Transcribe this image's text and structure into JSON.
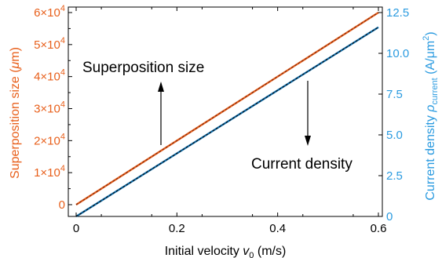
{
  "chart_data": {
    "type": "line",
    "xlabel_parts": [
      "Initial velocity ",
      "v",
      "0",
      " (m/s)"
    ],
    "ylabel_left_parts": [
      "Superposition size (",
      "μ",
      "m)"
    ],
    "ylabel_right_parts": [
      "Current density ",
      "ρ",
      "current",
      " (A/μm",
      "2",
      ")"
    ],
    "xlim": [
      0,
      0.6
    ],
    "ylim_left": [
      0,
      60000
    ],
    "ylim_right": [
      0,
      12.5
    ],
    "x_ticks": [
      {
        "value": 0,
        "label": "0"
      },
      {
        "value": 0.2,
        "label": "0.2"
      },
      {
        "value": 0.4,
        "label": "0.4"
      },
      {
        "value": 0.6,
        "label": "0.6"
      }
    ],
    "y_left_ticks": [
      {
        "value": 0,
        "mant": "0",
        "exp": ""
      },
      {
        "value": 10000,
        "mant": "1×10",
        "exp": "4"
      },
      {
        "value": 20000,
        "mant": "2×10",
        "exp": "4"
      },
      {
        "value": 30000,
        "mant": "3×10",
        "exp": "4"
      },
      {
        "value": 40000,
        "mant": "4×10",
        "exp": "4"
      },
      {
        "value": 50000,
        "mant": "5×10",
        "exp": "4"
      },
      {
        "value": 60000,
        "mant": "6×10",
        "exp": "4"
      }
    ],
    "y_right_ticks": [
      {
        "value": 0,
        "label": "0"
      },
      {
        "value": 2.5,
        "label": "2.5"
      },
      {
        "value": 5.0,
        "label": "5.0"
      },
      {
        "value": 7.5,
        "label": "7.5"
      },
      {
        "value": 10.0,
        "label": "10.0"
      },
      {
        "value": 12.5,
        "label": "12.5"
      }
    ],
    "series": [
      {
        "axis": "left",
        "color": "#e8601c",
        "fit_color": "#7a2a10",
        "x": [
          0,
          0.6
        ],
        "y": [
          0,
          60000
        ]
      },
      {
        "axis": "right",
        "color": "#0e6fae",
        "fit_color": "#0a0a0a",
        "x": [
          0,
          0.6
        ],
        "y": [
          0,
          11.6
        ]
      }
    ],
    "annotations": [
      {
        "text": "Superposition size",
        "direction": "up"
      },
      {
        "text": "Current density",
        "direction": "down"
      }
    ],
    "colors": {
      "left_axis": "#e8601c",
      "right_axis": "#2b9be0",
      "frame": "#000000"
    }
  }
}
